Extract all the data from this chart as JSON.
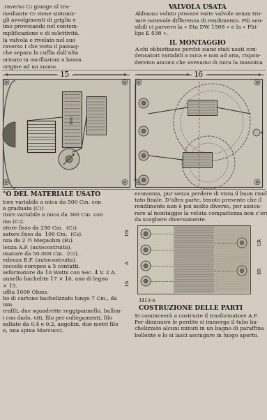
{
  "bg_color": "#c8c0b0",
  "page_bg": "#d4ccc0",
  "text_color": "#1a1a1a",
  "figsize": [
    3.83,
    6.02
  ],
  "dpi": 100,
  "top_left_lines": [
    ".raverso C₂ giunge al tra-",
    "mediante C₆ viene sintoniz-",
    "gli avvolgimenti di griglia e",
    "imo provocando nel contem-",
    "mplificazione e di selettività.",
    "la valvola e rivelato nel suo",
    "raverso I che vieta il passag-",
    "che separa la cuffia dall’alta",
    "ormato in oscillazioni a bassa",
    "origine ad un suono."
  ],
  "valvola_title": "VALVOLA USATA",
  "valvola_lines": [
    "Abbiamo voluto provare varie valvole senza tro-",
    "vare notevole differenza di rendimento. Più sen-",
    "sibili ci parvero la « Eta DW 1508 » e la « Phi-",
    "lips E 438 »."
  ],
  "montaggio_title": "IL MONTAGGIO",
  "montaggio_lines": [
    "A chi obbiettasse perchè siano stati usati con-",
    "densatori variabili a mica e non ad aria, rispon-",
    "deremo ancora che avevamo di mira la massima"
  ],
  "materiale_title": "°O DEL MATERIALE USATO",
  "materiale_lines": [
    "tore variabile a mica da 500 Cm. con",
    "a graduata (C₁)",
    "itore variabile a mica da 300 Cm. con",
    "ina (C₂).",
    "atore fisso da 250 Cm.  (C₃).",
    "satore fisso da  100 Cm.  (C₄).",
    "nza da 2 ½ Megaohm (R₁).",
    "lenza A.F. (autocostruita).",
    "nsatore da 50.000 Cm.  (C₅).",
    "edenza B.F. (autocostruita).",
    "coccolo europeo a 5 contatti.",
    "asformatore da 10 Watts con Sec. 4 V. 2 A.",
    "annello bachelite 17 × 16, uno di legno",
    "× 15.",
    "uffia 1000 Ohms.",
    "bo di cartone bachelizzato lungo 7 Cm., da",
    "mm.",
    "rrafili, due squadrette reggipannello, bullon-",
    "i con dado, viti, filo per collegamenti, filo",
    "saltato da 0,4 e 0,2, angolini, due metri filo",
    "e, una spina Marcucci."
  ],
  "economia_lines": [
    "economia, pur senza perdere di vista il buon risul-",
    "tato finale. D’altra parte, tenuto presente che il",
    "rendimento non è poi molto diverso, per assicu-",
    "rare al montaggio la voluta compattezza non c’era",
    "da scegliere diversamente."
  ],
  "costruzione_title": "COSTRUZIONE DELLE PARTI",
  "costruzione_lines": [
    "Si cominceerà a costruire il trasformatore A.F.",
    "Per diminuire le perdite si immerga il tubo ba-",
    "chelizzato alcuni minuti in un bagno di paraffina",
    "bollente e lo si lasci asciugare in luogo aperto."
  ],
  "fig_caption": "1413-6",
  "diag_left_num": "15",
  "diag_right_num": "16"
}
